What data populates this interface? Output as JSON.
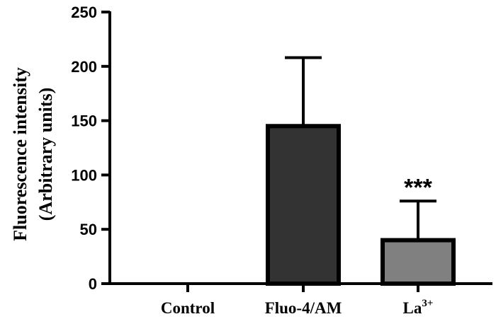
{
  "chart_data": {
    "type": "bar",
    "title": "",
    "xlabel": "",
    "ylabel": [
      "Fluorescence intensity",
      "(Arbitrary units)"
    ],
    "ylim": [
      0,
      250
    ],
    "yticks": [
      0,
      50,
      100,
      150,
      200,
      250
    ],
    "categories": [
      {
        "label": "Control",
        "sup": ""
      },
      {
        "label": "Fluo-4/AM",
        "sup": ""
      },
      {
        "label": "La",
        "sup": "3+"
      }
    ],
    "values": [
      0,
      145,
      40
    ],
    "error_upper": [
      0,
      63,
      36
    ],
    "bar_colors": [
      "#ffffff",
      "#333333",
      "#808080"
    ],
    "annotations": [
      {
        "category_index": 2,
        "text": "***"
      }
    ],
    "grid": false,
    "legend": "none"
  }
}
